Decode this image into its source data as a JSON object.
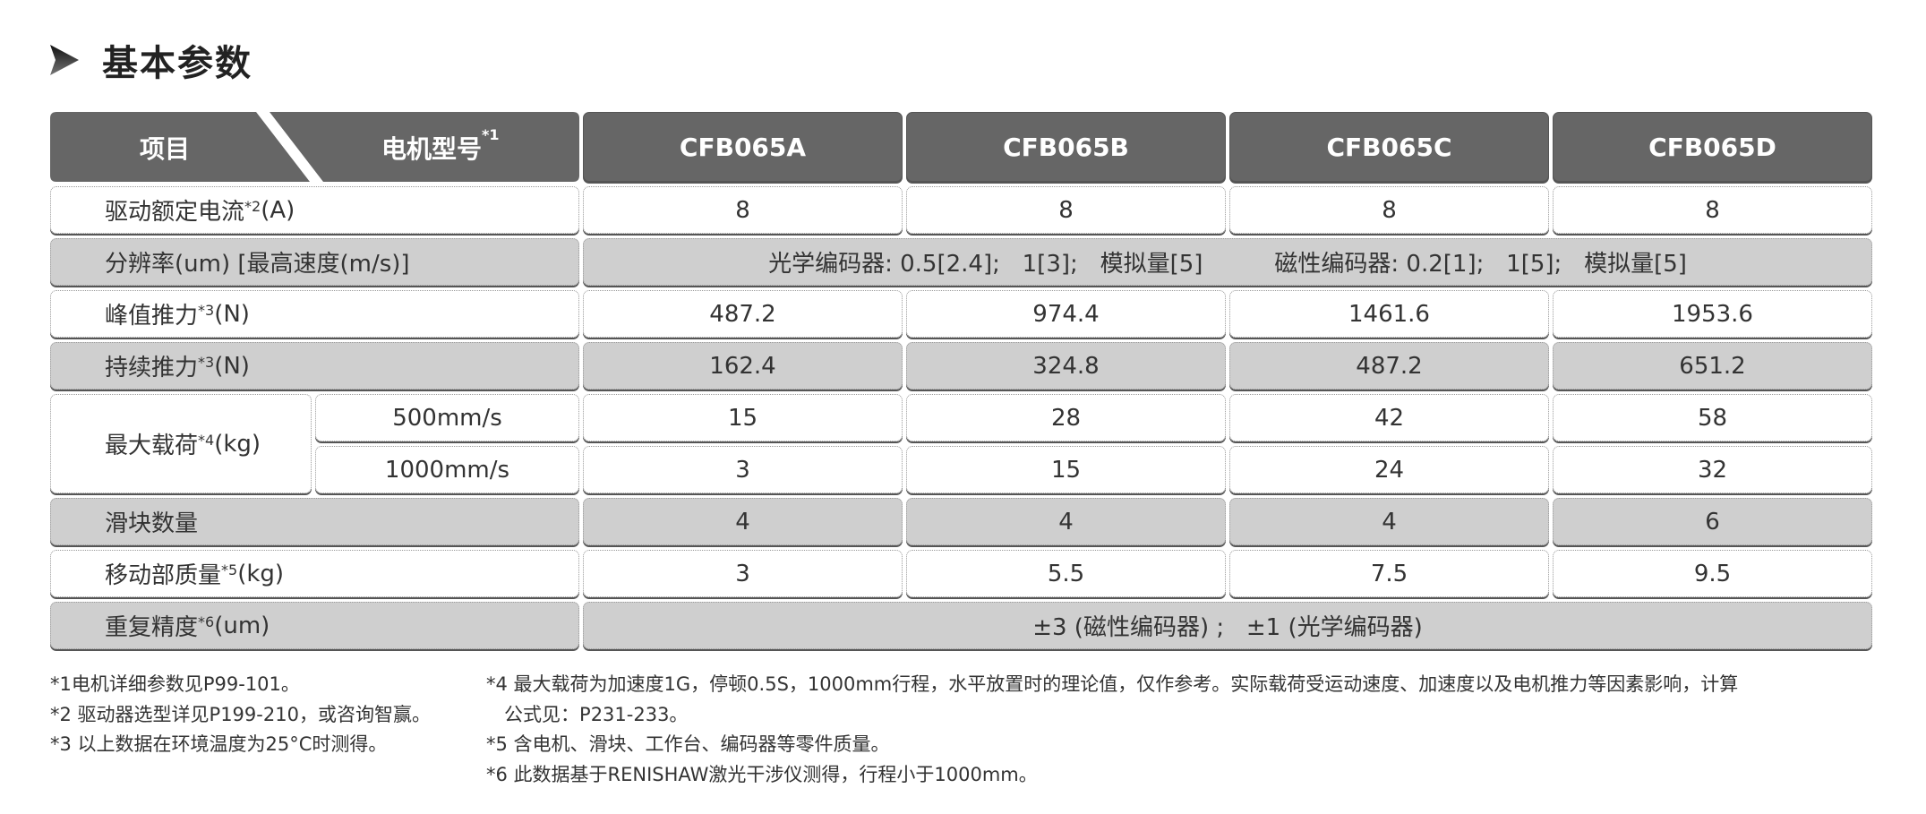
{
  "title": "基本参数",
  "header": {
    "item": "项目",
    "model": "电机型号",
    "model_sup": "*1",
    "models": [
      "CFB065A",
      "CFB065B",
      "CFB065C",
      "CFB065D"
    ]
  },
  "rows": {
    "current": {
      "label": "驱动额定电流",
      "sup": "*2",
      "unit": "(A)",
      "values": [
        "8",
        "8",
        "8",
        "8"
      ]
    },
    "resolution": {
      "label": "分辨率(um)  [最高速度(m/s)]",
      "optical": "光学编码器: 0.5[2.4];   1[3];   模拟量[5]",
      "magnetic": "磁性编码器: 0.2[1];   1[5];   模拟量[5]"
    },
    "peak": {
      "label": "峰值推力",
      "sup": "*3",
      "unit": "(N)",
      "values": [
        "487.2",
        "974.4",
        "1461.6",
        "1953.6"
      ]
    },
    "continuous": {
      "label": "持续推力",
      "sup": "*3",
      "unit": "(N)",
      "values": [
        "162.4",
        "324.8",
        "487.2",
        "651.2"
      ]
    },
    "maxload": {
      "label": "最大载荷",
      "sup": "*4",
      "unit": "(kg)",
      "speeds": [
        {
          "speed": "500mm/s",
          "values": [
            "15",
            "28",
            "42",
            "58"
          ]
        },
        {
          "speed": "1000mm/s",
          "values": [
            "3",
            "15",
            "24",
            "32"
          ]
        }
      ]
    },
    "sliders": {
      "label": "滑块数量",
      "values": [
        "4",
        "4",
        "4",
        "6"
      ]
    },
    "mass": {
      "label": "移动部质量",
      "sup": "*5",
      "unit": "(kg)",
      "values": [
        "3",
        "5.5",
        "7.5",
        "9.5"
      ]
    },
    "repeat": {
      "label": "重复精度",
      "sup": "*6",
      "unit": "(um)",
      "value": "±3 (磁性编码器) ;   ±1 (光学编码器)"
    }
  },
  "notes_left": [
    "*1电机详细参数见P99-101。",
    "*2 驱动器选型详见P199-210，或咨询智赢。",
    "*3 以上数据在环境温度为25°C时测得。"
  ],
  "notes_right": [
    "*4 最大载荷为加速度1G，停顿0.5S，1000mm行程，水平放置时的理论值，仅作参考。实际载荷受运动速度、加速度以及电机推力等因素影响，计算",
    "   公式见：P231-233。",
    "*5 含电机、滑块、工作台、编码器等零件质量。",
    "*6 此数据基于RENISHAW激光干涉仪测得，行程小于1000mm。"
  ]
}
